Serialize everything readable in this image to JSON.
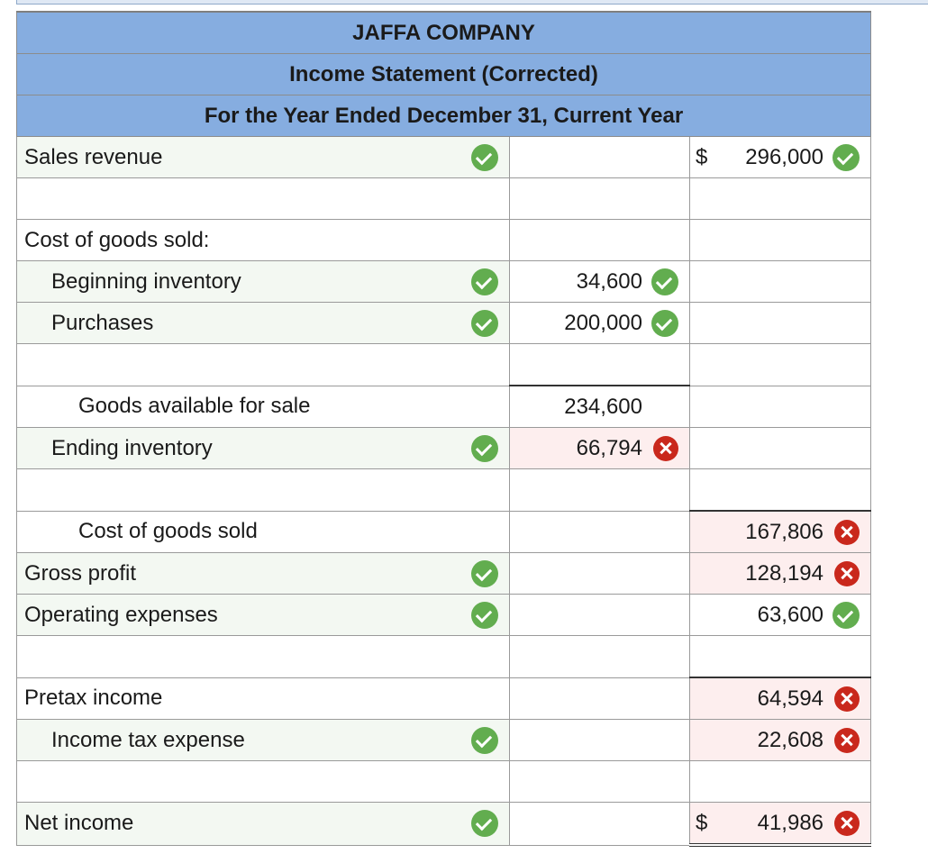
{
  "header": {
    "company": "JAFFA COMPANY",
    "statement": "Income Statement (Corrected)",
    "period": "For the Year Ended December 31, Current Year"
  },
  "rows": [
    {
      "label": "Sales revenue",
      "indent": 0,
      "label_status": "correct",
      "col2": "",
      "col2_status": "",
      "col3_dollar": "$",
      "col3": "296,000",
      "col3_status": "correct"
    },
    {
      "label": "",
      "indent": 0,
      "label_status": "",
      "col2": "",
      "col2_status": "",
      "col3_dollar": "",
      "col3": "",
      "col3_status": ""
    },
    {
      "label": "Cost of goods sold:",
      "indent": 0,
      "label_status": "",
      "col2": "",
      "col2_status": "",
      "col3_dollar": "",
      "col3": "",
      "col3_status": ""
    },
    {
      "label": "Beginning inventory",
      "indent": 1,
      "label_status": "correct",
      "col2": "34,600",
      "col2_status": "correct",
      "col3_dollar": "",
      "col3": "",
      "col3_status": ""
    },
    {
      "label": "Purchases",
      "indent": 1,
      "label_status": "correct",
      "col2": "200,000",
      "col2_status": "correct",
      "col3_dollar": "",
      "col3": "",
      "col3_status": ""
    },
    {
      "label": "",
      "indent": 0,
      "label_status": "",
      "col2": "",
      "col2_status": "",
      "col3_dollar": "",
      "col3": "",
      "col3_status": ""
    },
    {
      "label": "Goods available for sale",
      "indent": 2,
      "label_status": "",
      "col2": "234,600",
      "col2_status": "",
      "col3_dollar": "",
      "col3": "",
      "col3_status": ""
    },
    {
      "label": "Ending inventory",
      "indent": 1,
      "label_status": "correct",
      "col2": "66,794",
      "col2_status": "incorrect",
      "col3_dollar": "",
      "col3": "",
      "col3_status": ""
    },
    {
      "label": "",
      "indent": 0,
      "label_status": "",
      "col2": "",
      "col2_status": "",
      "col3_dollar": "",
      "col3": "",
      "col3_status": ""
    },
    {
      "label": "Cost of goods sold",
      "indent": 2,
      "label_status": "",
      "col2": "",
      "col2_status": "",
      "col3_dollar": "",
      "col3": "167,806",
      "col3_status": "incorrect"
    },
    {
      "label": "Gross profit",
      "indent": 0,
      "label_status": "correct",
      "col2": "",
      "col2_status": "",
      "col3_dollar": "",
      "col3": "128,194",
      "col3_status": "incorrect"
    },
    {
      "label": "Operating expenses",
      "indent": 0,
      "label_status": "correct",
      "col2": "",
      "col2_status": "",
      "col3_dollar": "",
      "col3": "63,600",
      "col3_status": "correct"
    },
    {
      "label": "",
      "indent": 0,
      "label_status": "",
      "col2": "",
      "col2_status": "",
      "col3_dollar": "",
      "col3": "",
      "col3_status": ""
    },
    {
      "label": "Pretax income",
      "indent": 0,
      "label_status": "",
      "col2": "",
      "col2_status": "",
      "col3_dollar": "",
      "col3": "64,594",
      "col3_status": "incorrect"
    },
    {
      "label": "Income tax expense",
      "indent": 1,
      "label_status": "correct",
      "col2": "",
      "col2_status": "",
      "col3_dollar": "",
      "col3": "22,608",
      "col3_status": "incorrect"
    },
    {
      "label": "",
      "indent": 0,
      "label_status": "",
      "col2": "",
      "col2_status": "",
      "col3_dollar": "",
      "col3": "",
      "col3_status": ""
    },
    {
      "label": "Net income",
      "indent": 0,
      "label_status": "correct",
      "col2": "",
      "col2_status": "",
      "col3_dollar": "$",
      "col3": "41,986",
      "col3_status": "incorrect"
    }
  ],
  "colors": {
    "header_bg": "#86ade0",
    "correct": "#62ad4f",
    "incorrect": "#c9281c",
    "label_cell_bg": "#f3f8f2",
    "incorrect_cell_bg": "#fdeeee"
  },
  "icons": {
    "correct": "check-circle-icon",
    "incorrect": "x-circle-icon"
  }
}
